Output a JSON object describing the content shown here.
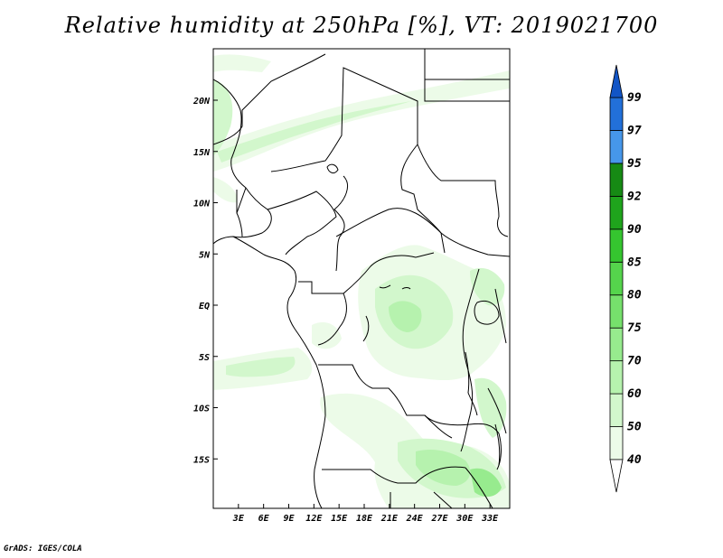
{
  "title": "Relative humidity at 250hPa [%], VT: 2019021700",
  "credit": "GrADS: IGES/COLA",
  "map": {
    "lon_range": [
      0,
      35
    ],
    "lat_range": [
      -20,
      25
    ],
    "lat_ticks": [
      {
        "lat": 20,
        "label": "20N"
      },
      {
        "lat": 15,
        "label": "15N"
      },
      {
        "lat": 10,
        "label": "10N"
      },
      {
        "lat": 5,
        "label": "5N"
      },
      {
        "lat": 0,
        "label": "EQ"
      },
      {
        "lat": -5,
        "label": "5S"
      },
      {
        "lat": -10,
        "label": "10S"
      },
      {
        "lat": -15,
        "label": "15S"
      }
    ],
    "lon_ticks": [
      {
        "lon": 3,
        "label": "3E"
      },
      {
        "lon": 6,
        "label": "6E"
      },
      {
        "lon": 9,
        "label": "9E"
      },
      {
        "lon": 12,
        "label": "12E"
      },
      {
        "lon": 15,
        "label": "15E"
      },
      {
        "lon": 18,
        "label": "18E"
      },
      {
        "lon": 21,
        "label": "21E"
      },
      {
        "lon": 24,
        "label": "24E"
      },
      {
        "lon": 27,
        "label": "27E"
      },
      {
        "lon": 30,
        "label": "30E"
      },
      {
        "lon": 33,
        "label": "33E"
      }
    ]
  },
  "colorbar": {
    "levels": [
      "40",
      "50",
      "60",
      "70",
      "75",
      "80",
      "85",
      "90",
      "92",
      "95",
      "97",
      "99"
    ],
    "colors": [
      "#ffffff",
      "#ecfbe8",
      "#d2f7cc",
      "#b6f2ae",
      "#97eb8e",
      "#76e06c",
      "#55d44c",
      "#35c52f",
      "#1fa41c",
      "#168a14",
      "#4697ea",
      "#2270d9",
      "#1255c6"
    ]
  }
}
